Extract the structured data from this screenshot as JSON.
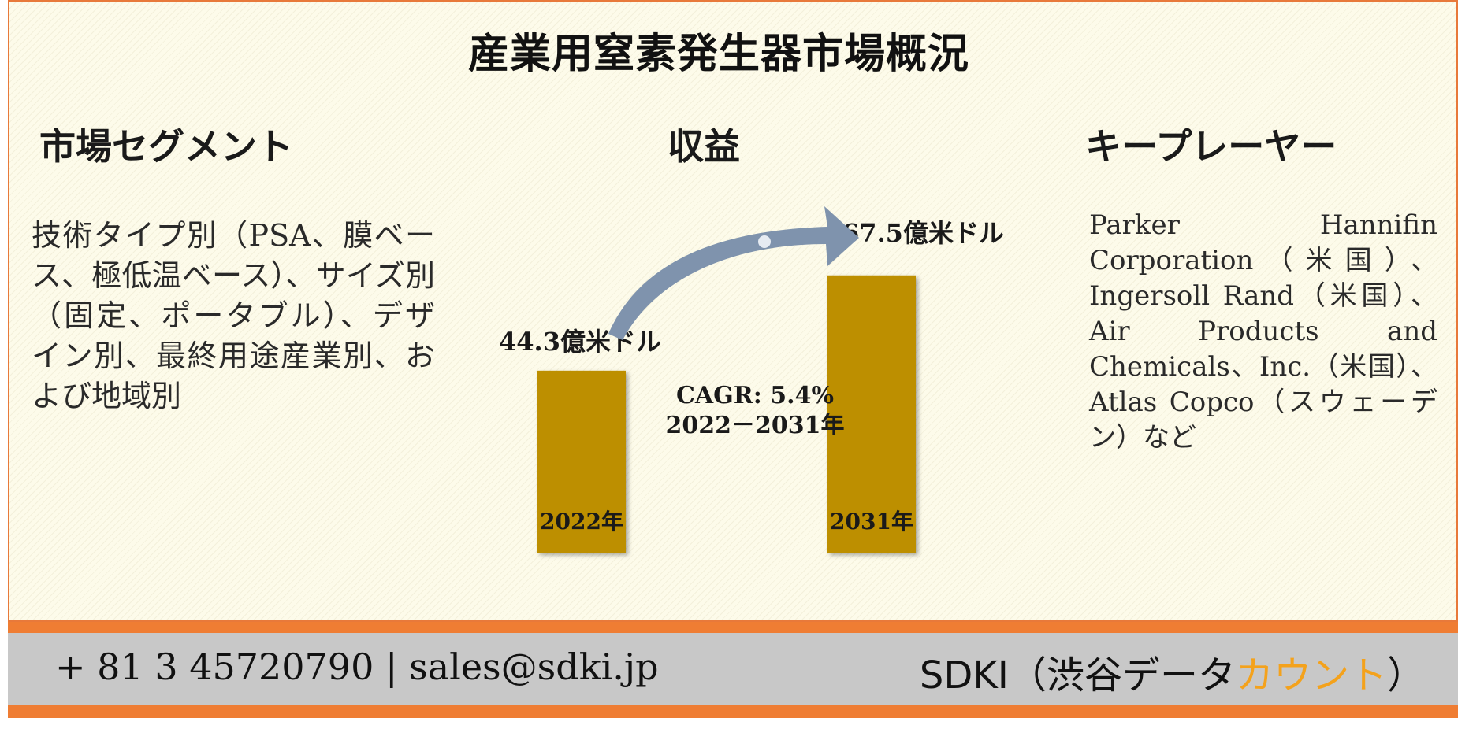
{
  "title": "産業用窒素発生器市場概況",
  "segments": {
    "heading": "市場セグメント",
    "text": "技術タイプ別（PSA、膜ベース、極低温ベース）、サイズ別（固定、ポータブル）、デザイン別、最終用途産業別、および地域別"
  },
  "revenue": {
    "heading": "収益",
    "cagr_line1": "CAGR: 5.4%",
    "cagr_line2": "2022－2031年"
  },
  "key_players": {
    "heading": "キープレーヤー",
    "text": "Parker Hannifin Corporation（米国）、Ingersoll Rand（米国）、Air Products and Chemicals、Inc.（米国）、Atlas Copco（スウェーデン）など"
  },
  "footer": {
    "contact": "+ 81 3 45720790 | sales@sdki.jp",
    "brand_main": "SDKI（渋谷データ",
    "brand_accent": "カウント",
    "brand_end": "）"
  },
  "colors": {
    "bar": "#bd8f06",
    "arrow": "#7f93ad",
    "accent": "#f4a21c",
    "stripe": "#ef7d33"
  },
  "chart_data": {
    "type": "bar",
    "categories": [
      "2022年",
      "2031年"
    ],
    "values": [
      44.3,
      67.5
    ],
    "value_labels": [
      "44.3億米ドル",
      "67.5億米ドル"
    ],
    "ylim": [
      0,
      70
    ]
  }
}
